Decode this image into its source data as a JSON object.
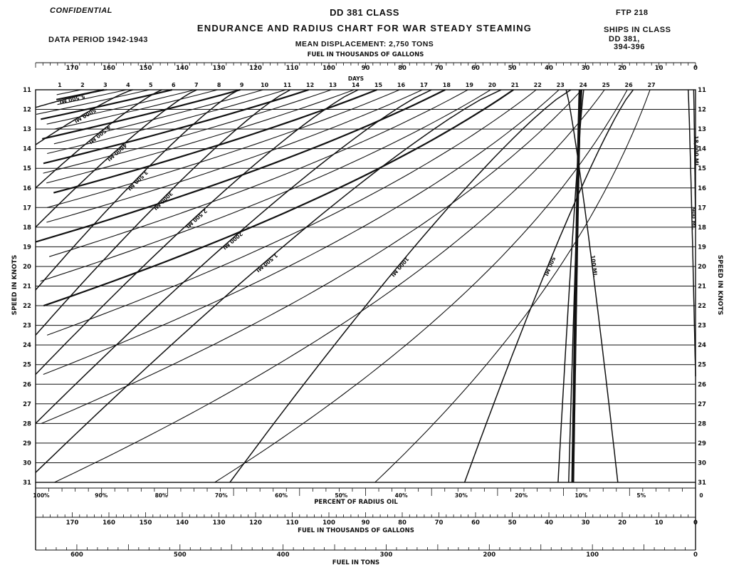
{
  "header": {
    "confidential": "CONFIDENTIAL",
    "title": "DD 381 CLASS",
    "subtitle": "ENDURANCE  AND  RADIUS  CHART  FOR  WAR  STEADY  STEAMING",
    "data_period": "DATA PERIOD 1942-1943",
    "mean_displacement": "MEAN DISPLACEMENT: 2,750 TONS",
    "ftp": "FTP  218",
    "ships_in_class_label": "SHIPS IN CLASS",
    "ships_line1": "DD 381,",
    "ships_line2": "394-396"
  },
  "chart_data": {
    "type": "line",
    "title": "ENDURANCE AND RADIUS CHART FOR WAR STEADY STEAMING",
    "y_left_label": "SPEED IN KNOTS",
    "y_right_label": "SPEED IN KNOTS",
    "ylim": [
      11,
      31
    ],
    "speed_ticks": [
      11,
      12,
      13,
      14,
      15,
      16,
      17,
      18,
      19,
      20,
      21,
      22,
      23,
      24,
      25,
      26,
      27,
      28,
      29,
      30,
      31
    ],
    "top_fuel_axis": {
      "label": "FUEL IN THOUSANDS OF GALLONS",
      "range": [
        180,
        0
      ],
      "ticks": [
        170,
        160,
        150,
        140,
        130,
        120,
        110,
        100,
        90,
        80,
        70,
        60,
        50,
        40,
        30,
        20,
        10,
        0
      ]
    },
    "days_axis": {
      "label": "DAYS",
      "ticks": [
        1,
        2,
        3,
        4,
        5,
        6,
        7,
        8,
        9,
        10,
        11,
        12,
        13,
        14,
        15,
        16,
        17,
        18,
        19,
        20,
        21,
        22,
        23,
        24,
        25,
        26,
        27
      ]
    },
    "percent_axis": {
      "label": "PERCENT OF RADIUS OIL",
      "ticks": [
        "100%",
        "90%",
        "80%",
        "70%",
        "60%",
        "50%",
        "40%",
        "30%",
        "20%",
        "10%",
        "5%",
        "0"
      ]
    },
    "bottom_fuel_axis": {
      "label": "FUEL  IN  THOUSANDS  OF  GALLONS",
      "ticks": [
        170,
        160,
        150,
        140,
        130,
        120,
        110,
        100,
        90,
        80,
        70,
        60,
        50,
        40,
        30,
        20,
        10,
        0
      ]
    },
    "tons_axis": {
      "label": "FUEL  IN  TONS",
      "ticks": [
        600,
        500,
        400,
        300,
        200,
        100,
        0
      ]
    },
    "radius_curves": [
      {
        "label": "5,500 MI.",
        "points": [
          [
            11,
            160.5
          ],
          [
            11.9,
            180
          ]
        ]
      },
      {
        "label": "5000 MI.",
        "points": [
          [
            11,
            153.5
          ],
          [
            13.8,
            180
          ]
        ]
      },
      {
        "label": "4,500 MI.",
        "points": [
          [
            11,
            145.5
          ],
          [
            16,
            180
          ]
        ]
      },
      {
        "label": "4000 MI.",
        "points": [
          [
            11,
            136
          ],
          [
            18,
            180
          ]
        ]
      },
      {
        "label": "3,500 MI.",
        "points": [
          [
            11,
            124.5
          ],
          [
            21.2,
            180
          ]
        ]
      },
      {
        "label": "3000 MI.",
        "points": [
          [
            11,
            110.5
          ],
          [
            23.5,
            180
          ]
        ]
      },
      {
        "label": "2,500 MI.",
        "points": [
          [
            11,
            92
          ],
          [
            25.5,
            180
          ]
        ]
      },
      {
        "label": "2000 MI.",
        "points": [
          [
            11,
            72
          ],
          [
            28,
            180
          ]
        ]
      },
      {
        "label": "1,500 MI.",
        "points": [
          [
            11,
            53
          ],
          [
            30.5,
            180
          ]
        ]
      },
      {
        "label": "1000 MI.",
        "points": [
          [
            11,
            34
          ],
          [
            31,
            127
          ]
        ]
      },
      {
        "label": "500 MI.",
        "points": [
          [
            11,
            17
          ],
          [
            31,
            63
          ]
        ]
      },
      {
        "label": "100 MI.",
        "points": [
          [
            11,
            35.3
          ],
          [
            31,
            21.2
          ]
        ]
      },
      {
        "label": "",
        "points": [
          [
            11,
            31
          ],
          [
            31,
            34.6
          ]
        ]
      },
      {
        "label": "",
        "points": [
          [
            11,
            31.5
          ],
          [
            31,
            33.5
          ]
        ]
      },
      {
        "label": "",
        "points": [
          [
            11,
            30.5
          ],
          [
            31,
            37.5
          ]
        ]
      },
      {
        "label": "900 MI.",
        "points": [
          [
            11,
            2
          ],
          [
            25.6,
            0
          ]
        ]
      },
      {
        "label": "18,000 MI.",
        "points": [
          [
            11,
            0.5
          ],
          [
            18,
            0
          ]
        ]
      }
    ],
    "days_curves": [
      1,
      2,
      3,
      4,
      5,
      6,
      7,
      8,
      9,
      10,
      11,
      12,
      13,
      14,
      15,
      16,
      17,
      18,
      19,
      20,
      21,
      22,
      23,
      24,
      25,
      26,
      27
    ],
    "heavy_days": [
      3,
      6,
      9,
      12,
      15,
      18,
      21
    ],
    "grid": true
  }
}
